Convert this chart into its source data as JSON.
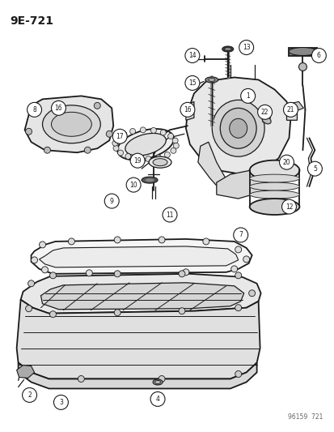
{
  "title": "9E-721",
  "watermark": "96159  721",
  "bg_color": "#ffffff",
  "line_color": "#1a1a1a",
  "fig_width": 4.14,
  "fig_height": 5.33,
  "dpi": 100
}
